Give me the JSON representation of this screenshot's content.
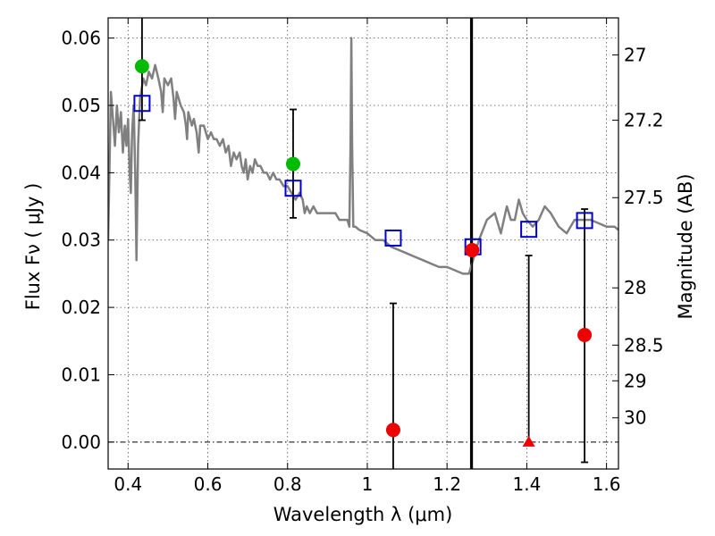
{
  "chart_data": {
    "type": "scatter",
    "title": "",
    "xlabel": "Wavelength  λ (μm)",
    "ylabel": "Flux  Fν  ( μJy )",
    "ylabel_right": "Magnitude (AB)",
    "xlim": [
      0.35,
      1.63
    ],
    "ylim": [
      -0.004,
      0.063
    ],
    "x_ticks": [
      0.4,
      0.6,
      0.8,
      1.0,
      1.2,
      1.4,
      1.6
    ],
    "x_tick_labels": [
      "0.4",
      "0.6",
      "0.8",
      "1",
      "1.2",
      "1.4",
      "1.6"
    ],
    "y_ticks": [
      0.0,
      0.01,
      0.02,
      0.03,
      0.04,
      0.05,
      0.06
    ],
    "y_tick_labels": [
      "0.00",
      "0.01",
      "0.02",
      "0.03",
      "0.04",
      "0.05",
      "0.06"
    ],
    "right_ticks": [
      {
        "label": "27",
        "flux": 0.0575
      },
      {
        "label": "27.2",
        "flux": 0.0478
      },
      {
        "label": "27.5",
        "flux": 0.0363
      },
      {
        "label": "28",
        "flux": 0.0229
      },
      {
        "label": "28.5",
        "flux": 0.0144
      },
      {
        "label": "29",
        "flux": 0.0091
      },
      {
        "label": "30",
        "flux": 0.0036
      }
    ],
    "grid": true,
    "zero_line": 0.0,
    "vertical_line_x": 1.26,
    "series": [
      {
        "style": "line",
        "color": "#808080",
        "points": [
          [
            0.35,
            0.03
          ],
          [
            0.357,
            0.052
          ],
          [
            0.362,
            0.048
          ],
          [
            0.367,
            0.044
          ],
          [
            0.372,
            0.05
          ],
          [
            0.377,
            0.046
          ],
          [
            0.382,
            0.049
          ],
          [
            0.387,
            0.043
          ],
          [
            0.392,
            0.047
          ],
          [
            0.396,
            0.044
          ],
          [
            0.4,
            0.048
          ],
          [
            0.404,
            0.04
          ],
          [
            0.407,
            0.037
          ],
          [
            0.41,
            0.046
          ],
          [
            0.414,
            0.05
          ],
          [
            0.418,
            0.04
          ],
          [
            0.421,
            0.027
          ],
          [
            0.425,
            0.044
          ],
          [
            0.43,
            0.051
          ],
          [
            0.438,
            0.054
          ],
          [
            0.445,
            0.053
          ],
          [
            0.452,
            0.055
          ],
          [
            0.46,
            0.054
          ],
          [
            0.468,
            0.056
          ],
          [
            0.476,
            0.054
          ],
          [
            0.483,
            0.052
          ],
          [
            0.487,
            0.049
          ],
          [
            0.491,
            0.054
          ],
          [
            0.5,
            0.053
          ],
          [
            0.508,
            0.054
          ],
          [
            0.514,
            0.051
          ],
          [
            0.518,
            0.048
          ],
          [
            0.522,
            0.052
          ],
          [
            0.532,
            0.05
          ],
          [
            0.54,
            0.049
          ],
          [
            0.545,
            0.047
          ],
          [
            0.548,
            0.045
          ],
          [
            0.551,
            0.049
          ],
          [
            0.56,
            0.047
          ],
          [
            0.565,
            0.048
          ],
          [
            0.572,
            0.046
          ],
          [
            0.577,
            0.043
          ],
          [
            0.581,
            0.047
          ],
          [
            0.59,
            0.047
          ],
          [
            0.6,
            0.045
          ],
          [
            0.608,
            0.046
          ],
          [
            0.615,
            0.045
          ],
          [
            0.622,
            0.045
          ],
          [
            0.63,
            0.044
          ],
          [
            0.638,
            0.045
          ],
          [
            0.645,
            0.043
          ],
          [
            0.652,
            0.044
          ],
          [
            0.658,
            0.041
          ],
          [
            0.665,
            0.043
          ],
          [
            0.672,
            0.042
          ],
          [
            0.68,
            0.043
          ],
          [
            0.685,
            0.041
          ],
          [
            0.69,
            0.04
          ],
          [
            0.695,
            0.042
          ],
          [
            0.7,
            0.039
          ],
          [
            0.706,
            0.041
          ],
          [
            0.712,
            0.04
          ],
          [
            0.718,
            0.042
          ],
          [
            0.725,
            0.041
          ],
          [
            0.732,
            0.041
          ],
          [
            0.74,
            0.04
          ],
          [
            0.748,
            0.04
          ],
          [
            0.756,
            0.039
          ],
          [
            0.764,
            0.04
          ],
          [
            0.772,
            0.039
          ],
          [
            0.78,
            0.039
          ],
          [
            0.79,
            0.038
          ],
          [
            0.8,
            0.038
          ],
          [
            0.81,
            0.037
          ],
          [
            0.82,
            0.036
          ],
          [
            0.83,
            0.037
          ],
          [
            0.838,
            0.036
          ],
          [
            0.843,
            0.034
          ],
          [
            0.848,
            0.035
          ],
          [
            0.856,
            0.034
          ],
          [
            0.865,
            0.035
          ],
          [
            0.874,
            0.034
          ],
          [
            0.883,
            0.034
          ],
          [
            0.892,
            0.034
          ],
          [
            0.9,
            0.034
          ],
          [
            0.91,
            0.034
          ],
          [
            0.92,
            0.034
          ],
          [
            0.93,
            0.033
          ],
          [
            0.94,
            0.033
          ],
          [
            0.95,
            0.033
          ],
          [
            0.955,
            0.032
          ],
          [
            0.958,
            0.044
          ],
          [
            0.96,
            0.06
          ],
          [
            0.962,
            0.044
          ],
          [
            0.965,
            0.032
          ],
          [
            0.97,
            0.032
          ],
          [
            0.98,
            0.0315
          ],
          [
            1.0,
            0.031
          ],
          [
            1.02,
            0.03
          ],
          [
            1.04,
            0.03
          ],
          [
            1.06,
            0.029
          ],
          [
            1.08,
            0.0285
          ],
          [
            1.1,
            0.028
          ],
          [
            1.12,
            0.0275
          ],
          [
            1.14,
            0.027
          ],
          [
            1.16,
            0.0265
          ],
          [
            1.18,
            0.026
          ],
          [
            1.2,
            0.026
          ],
          [
            1.22,
            0.0255
          ],
          [
            1.24,
            0.025
          ],
          [
            1.255,
            0.025
          ],
          [
            1.265,
            0.027
          ],
          [
            1.28,
            0.03
          ],
          [
            1.3,
            0.033
          ],
          [
            1.32,
            0.034
          ],
          [
            1.335,
            0.031
          ],
          [
            1.35,
            0.035
          ],
          [
            1.36,
            0.033
          ],
          [
            1.37,
            0.033
          ],
          [
            1.38,
            0.036
          ],
          [
            1.39,
            0.034
          ],
          [
            1.4,
            0.033
          ],
          [
            1.415,
            0.032
          ],
          [
            1.43,
            0.033
          ],
          [
            1.445,
            0.035
          ],
          [
            1.46,
            0.034
          ],
          [
            1.48,
            0.032
          ],
          [
            1.5,
            0.031
          ],
          [
            1.52,
            0.033
          ],
          [
            1.54,
            0.033
          ],
          [
            1.56,
            0.033
          ],
          [
            1.58,
            0.0325
          ],
          [
            1.6,
            0.032
          ],
          [
            1.62,
            0.032
          ],
          [
            1.63,
            0.0315
          ]
        ]
      },
      {
        "style": "open-square",
        "color": "#0000cc",
        "points": [
          [
            0.435,
            0.0503
          ],
          [
            0.814,
            0.0377
          ],
          [
            1.065,
            0.0303
          ],
          [
            1.265,
            0.029
          ],
          [
            1.405,
            0.0316
          ],
          [
            1.545,
            0.0329
          ]
        ]
      },
      {
        "style": "dot",
        "color": "#00bb00",
        "points": [
          [
            0.435,
            0.0558
          ],
          [
            0.814,
            0.0413
          ]
        ]
      },
      {
        "style": "dot",
        "color": "#ee0000",
        "points": [
          [
            1.065,
            0.0018
          ],
          [
            1.263,
            0.0285
          ],
          [
            1.545,
            0.0159
          ]
        ]
      },
      {
        "style": "triangle",
        "color": "#ee0000",
        "points": [
          [
            1.405,
            0.0
          ]
        ]
      }
    ],
    "error_bars": [
      {
        "x": 0.435,
        "low": 0.0478,
        "high": 0.063,
        "cap_low": true,
        "cap_high": false
      },
      {
        "x": 0.814,
        "low": 0.0333,
        "high": 0.0494,
        "cap_low": true,
        "cap_high": true
      },
      {
        "x": 1.065,
        "low": -0.004,
        "high": 0.0206,
        "cap_low": false,
        "cap_high": true
      },
      {
        "x": 1.263,
        "low": -0.004,
        "high": 0.063,
        "cap_low": false,
        "cap_high": false
      },
      {
        "x": 1.405,
        "low": 0.0,
        "high": 0.0277,
        "cap_low": false,
        "cap_high": true
      },
      {
        "x": 1.545,
        "low": -0.003,
        "high": 0.0346,
        "cap_low": true,
        "cap_high": true
      }
    ]
  }
}
